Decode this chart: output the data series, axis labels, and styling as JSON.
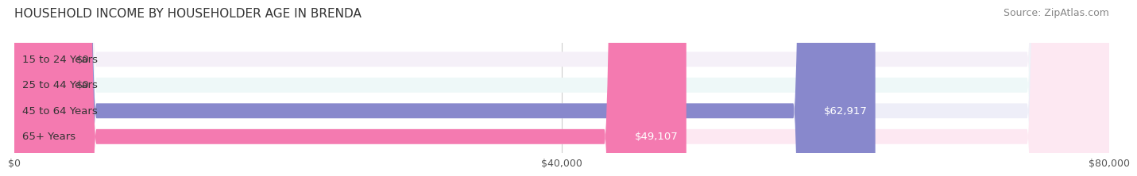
{
  "title": "HOUSEHOLD INCOME BY HOUSEHOLDER AGE IN BRENDA",
  "source": "Source: ZipAtlas.com",
  "categories": [
    "15 to 24 Years",
    "25 to 44 Years",
    "45 to 64 Years",
    "65+ Years"
  ],
  "values": [
    0,
    0,
    62917,
    49107
  ],
  "bar_colors": [
    "#c9a0d0",
    "#7ecece",
    "#8888cc",
    "#f47ab0"
  ],
  "bg_colors": [
    "#f5f0f8",
    "#eef8f8",
    "#eeeef8",
    "#fde8f2"
  ],
  "value_labels": [
    "$0",
    "$0",
    "$62,917",
    "$49,107"
  ],
  "xlim": [
    0,
    80000
  ],
  "xticks": [
    0,
    40000,
    80000
  ],
  "xtick_labels": [
    "$0",
    "$40,000",
    "$80,000"
  ],
  "title_fontsize": 11,
  "source_fontsize": 9,
  "label_fontsize": 9.5,
  "bar_height": 0.58,
  "background_color": "#ffffff"
}
